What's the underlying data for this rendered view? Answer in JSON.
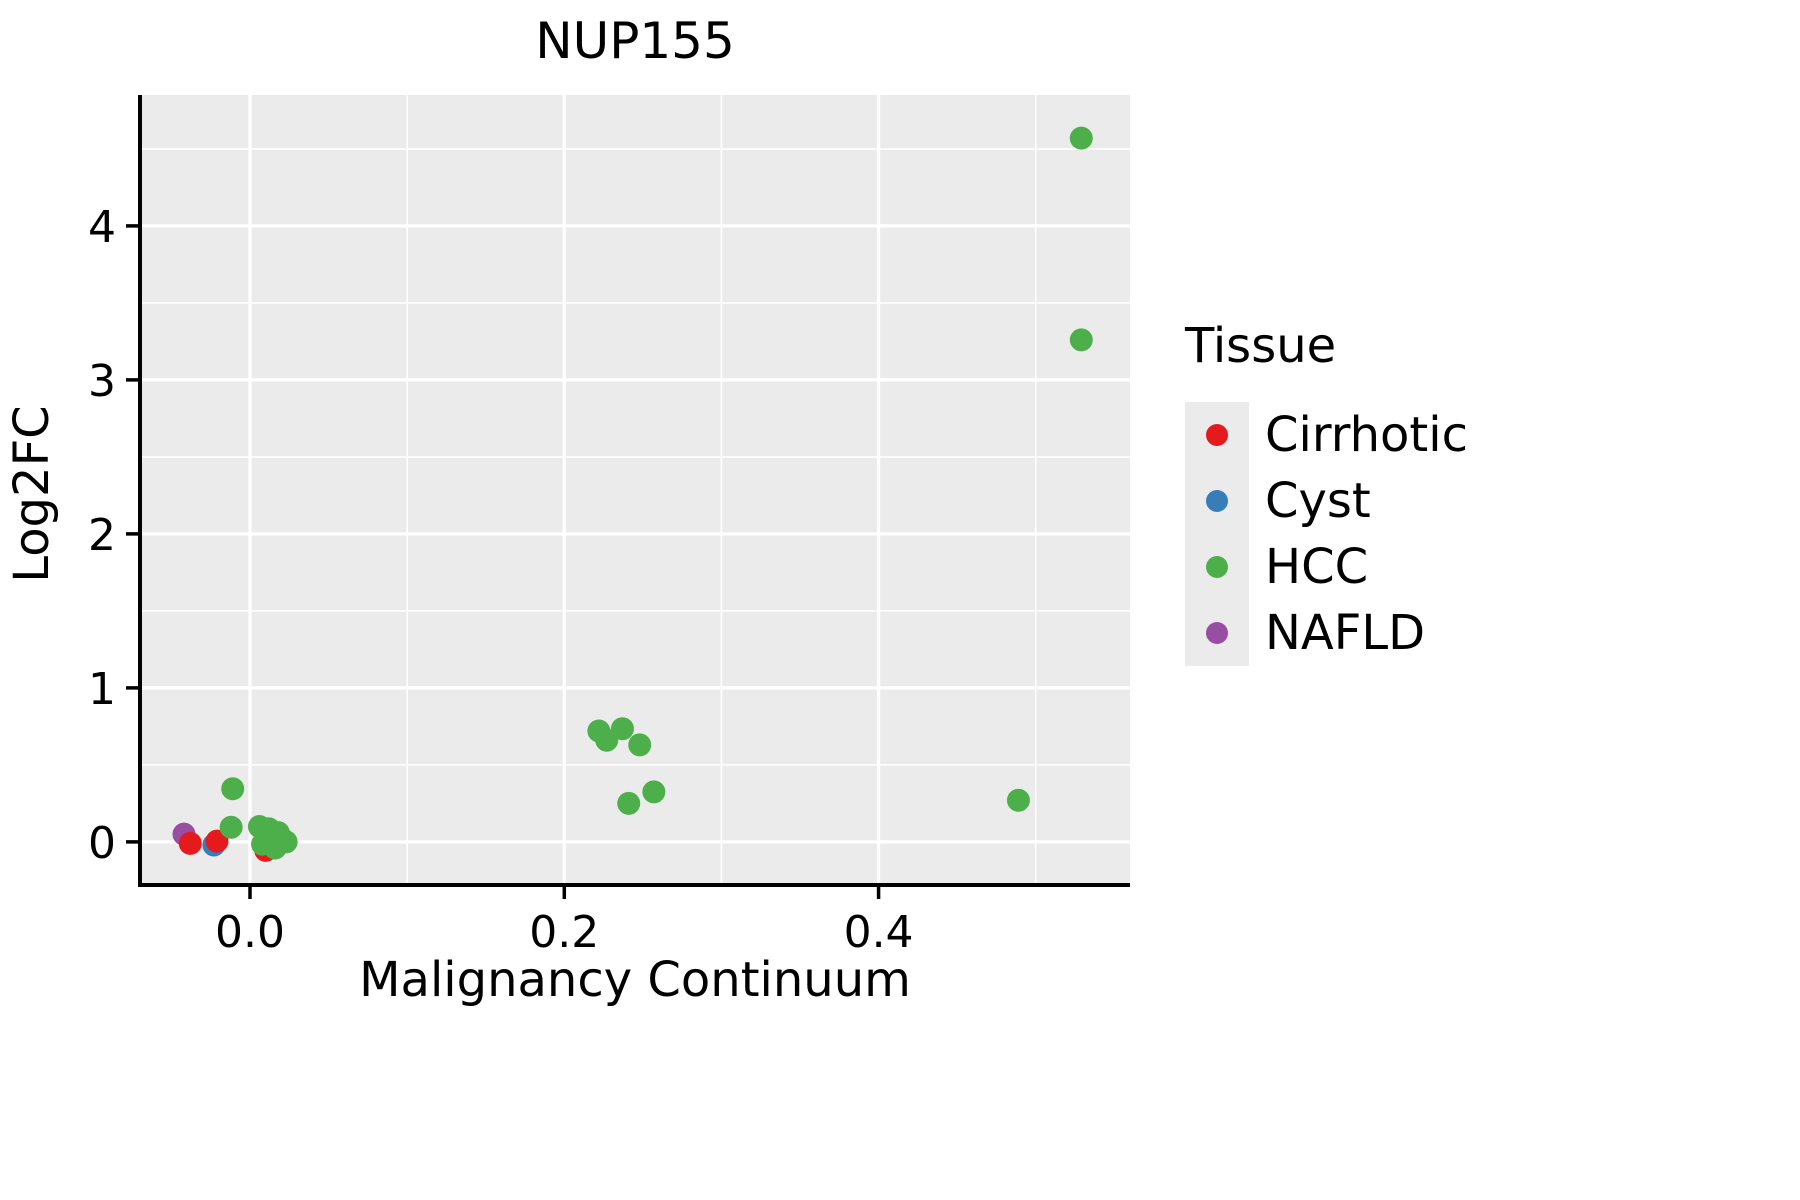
{
  "chart_data": {
    "type": "scatter",
    "title": "NUP155",
    "xlabel": "Malignancy Continuum",
    "ylabel": "Log2FC",
    "xlim": [
      -0.07,
      0.56
    ],
    "ylim": [
      -0.28,
      4.85
    ],
    "xticks": [
      0.0,
      0.2,
      0.4
    ],
    "xtick_labels": [
      "0.0",
      "0.2",
      "0.4"
    ],
    "yticks": [
      0,
      1,
      2,
      3,
      4
    ],
    "ytick_labels": [
      "0",
      "1",
      "2",
      "3",
      "4"
    ],
    "x_minor_ticks": [
      0.1,
      0.3,
      0.5
    ],
    "y_minor_ticks": [
      0.5,
      1.5,
      2.5,
      3.5,
      4.5
    ],
    "grid": true,
    "plot_background": "#EBEBEB",
    "gridline_color": "#FFFFFF",
    "axis_color": "#000000",
    "legend_position": "right",
    "series": [
      {
        "name": "NAFLD",
        "color": "#984EA3",
        "points": [
          [
            -0.042,
            0.05
          ]
        ]
      },
      {
        "name": "Cyst",
        "color": "#377EB8",
        "points": [
          [
            -0.023,
            -0.02
          ]
        ]
      },
      {
        "name": "Cirrhotic",
        "color": "#E41A1C",
        "points": [
          [
            -0.038,
            -0.01
          ],
          [
            -0.021,
            0.005
          ],
          [
            0.01,
            -0.055
          ]
        ]
      },
      {
        "name": "HCC",
        "color": "#4DAF4A",
        "points": [
          [
            0.529,
            4.57
          ],
          [
            0.529,
            3.26
          ],
          [
            0.489,
            0.27
          ],
          [
            0.222,
            0.72
          ],
          [
            0.227,
            0.66
          ],
          [
            0.237,
            0.735
          ],
          [
            0.248,
            0.63
          ],
          [
            0.241,
            0.25
          ],
          [
            0.257,
            0.325
          ],
          [
            -0.011,
            0.345
          ],
          [
            -0.012,
            0.095
          ],
          [
            0.006,
            0.1
          ],
          [
            0.01,
            0.055
          ],
          [
            0.013,
            0.02
          ],
          [
            0.018,
            0.06
          ],
          [
            0.021,
            0.015
          ],
          [
            0.008,
            -0.015
          ],
          [
            0.016,
            -0.04
          ],
          [
            0.023,
            0.0
          ],
          [
            0.012,
            0.085
          ]
        ]
      }
    ]
  },
  "legend": {
    "title": "Tissue",
    "entries": [
      {
        "label": "Cirrhotic",
        "color": "#E41A1C"
      },
      {
        "label": "Cyst",
        "color": "#377EB8"
      },
      {
        "label": "HCC",
        "color": "#4DAF4A"
      },
      {
        "label": "NAFLD",
        "color": "#984EA3"
      }
    ]
  }
}
